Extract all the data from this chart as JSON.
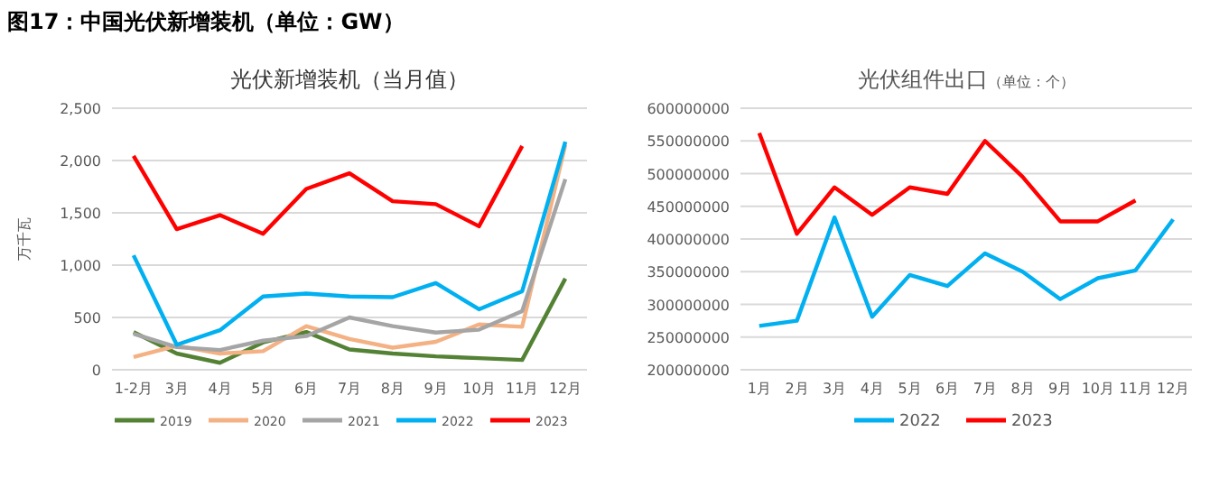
{
  "chart_data": [
    {
      "type": "line",
      "title": "图17：中国光伏新增装机（单位：GW）",
      "subtitle": "光伏新增装机（当月值）",
      "ylabel": "万千瓦",
      "categories": [
        "1-2月",
        "3月",
        "4月",
        "5月",
        "6月",
        "7月",
        "8月",
        "9月",
        "10月",
        "11月",
        "12月"
      ],
      "series": [
        {
          "name": "2019",
          "color": "#548235",
          "values": [
            360,
            155,
            67,
            261,
            361,
            194,
            155,
            128,
            111,
            94,
            872
          ]
        },
        {
          "name": "2020",
          "color": "#f4b183",
          "values": [
            122,
            230,
            155,
            178,
            417,
            294,
            211,
            267,
            433,
            411,
            2150
          ]
        },
        {
          "name": "2021",
          "color": "#a5a5a5",
          "values": [
            344,
            217,
            189,
            278,
            322,
            500,
            417,
            356,
            383,
            561,
            1822
          ]
        },
        {
          "name": "2022",
          "color": "#00b0f0",
          "values": [
            1094,
            239,
            378,
            700,
            728,
            700,
            694,
            828,
            578,
            750,
            2180
          ]
        },
        {
          "name": "2023",
          "color": "#ff0000",
          "values": [
            2044,
            1344,
            1478,
            1300,
            1728,
            1878,
            1611,
            1583,
            1372,
            2139,
            null
          ]
        }
      ],
      "ylim": [
        0,
        2500
      ],
      "yticks": [
        0,
        500,
        {
          "value": 1000,
          "label": "1,000"
        },
        {
          "value": 1500,
          "label": "1,500"
        },
        {
          "value": 2000,
          "label": "2,000"
        },
        {
          "value": 2500,
          "label": "2,500"
        }
      ],
      "grid": "y",
      "legend": "bottom",
      "line_style": "solid"
    },
    {
      "type": "line",
      "title": "光伏组件出口",
      "subtitle": "（单位：个）",
      "categories": [
        "1月",
        "2月",
        "3月",
        "4月",
        "5月",
        "6月",
        "7月",
        "8月",
        "9月",
        "10月",
        "11月",
        "12月"
      ],
      "series": [
        {
          "name": "2022",
          "color": "#00b0f0",
          "values": [
            267000000,
            275000000,
            433000000,
            281000000,
            345000000,
            328000000,
            378000000,
            350000000,
            308000000,
            340000000,
            352000000,
            430000000
          ]
        },
        {
          "name": "2023",
          "color": "#ff0000",
          "values": [
            562000000,
            408000000,
            479000000,
            437000000,
            479000000,
            469000000,
            550000000,
            495000000,
            427000000,
            427000000,
            459000000,
            null
          ]
        }
      ],
      "ylim": [
        200000000,
        600000000
      ],
      "yticks": [
        200000000,
        250000000,
        300000000,
        350000000,
        400000000,
        450000000,
        500000000,
        550000000,
        600000000
      ],
      "grid": "y",
      "legend": "bottom",
      "line_style": "solid"
    }
  ]
}
